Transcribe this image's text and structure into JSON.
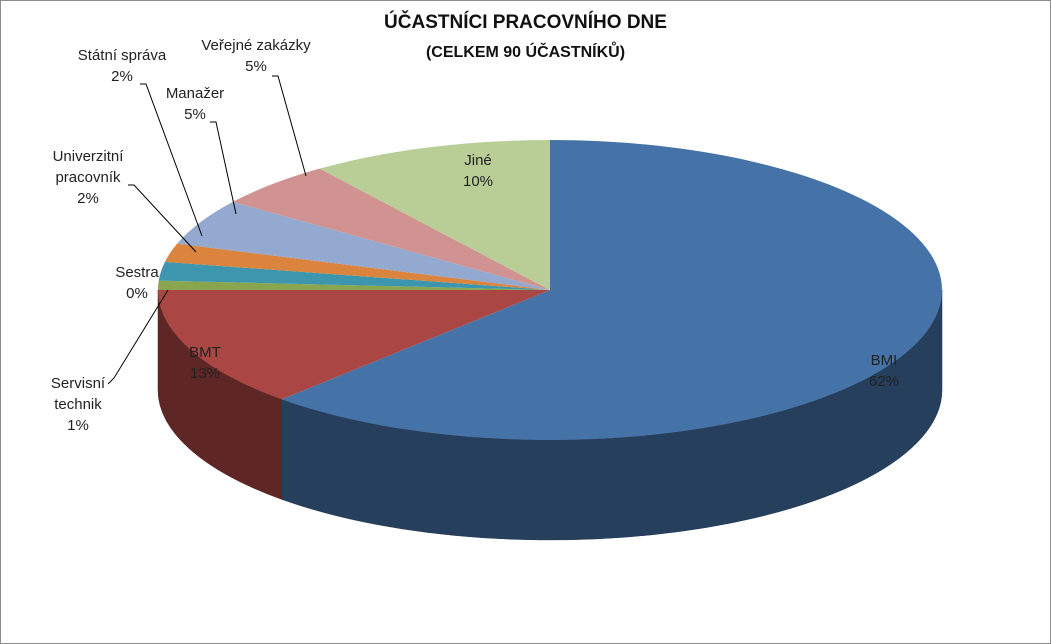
{
  "chart_data": {
    "type": "pie3d",
    "title": "ÚČASTNÍCI PRACOVNÍHO DNE",
    "subtitle": "(CELKEM 90 ÚČASTNÍKŮ)",
    "categories": [
      "BMI",
      "BMT",
      "Servisní technik",
      "Sestra",
      "Univerzitní pracovník",
      "Státní správa",
      "Manažer",
      "Veřejné zakázky",
      "Jiné"
    ],
    "values": [
      62,
      13,
      1,
      0,
      2,
      2,
      5,
      5,
      10
    ],
    "value_labels": [
      "62%",
      "13%",
      "1%",
      "0%",
      "2%",
      "2%",
      "5%",
      "5%",
      "10%"
    ],
    "colors": [
      "#4572a7",
      "#aa4643",
      "#89a54e",
      "#80699b",
      "#3d96ae",
      "#db843d",
      "#93a9cf",
      "#d19392",
      "#b9cd96"
    ]
  }
}
